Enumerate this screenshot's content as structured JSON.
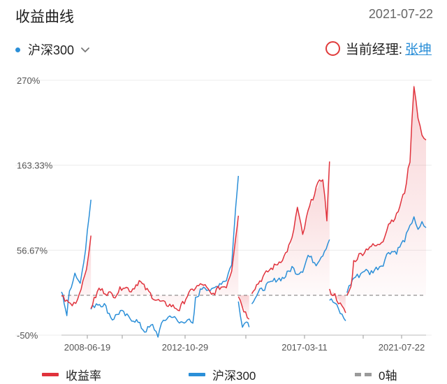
{
  "header": {
    "title": "收益曲线",
    "date": "2021-07-22"
  },
  "index_selector": {
    "label": "沪深300",
    "dot_color": "#2b8fd8"
  },
  "manager": {
    "label": "当前经理:",
    "name": "张坤"
  },
  "legend": {
    "return_label": "收益率",
    "index_label": "沪深300",
    "zero_label": "0轴"
  },
  "colors": {
    "return": "#e0323c",
    "index": "#2b8fd8",
    "zero": "#9a9a9a"
  },
  "chart_data": {
    "type": "line",
    "title": "收益曲线",
    "xlabel": "",
    "ylabel": "",
    "y_ticks": [
      "270%",
      "163.33%",
      "56.67%",
      "-50%"
    ],
    "x_ticks": [
      "2008-06-19",
      "2012-10-29",
      "2017-03-11",
      "2021-07-22"
    ],
    "ylim": [
      -50,
      270
    ],
    "grid": true,
    "zero_line": 0,
    "legend_position": "bottom",
    "series": [
      {
        "name": "收益率",
        "segments": [
          [
            [
              0,
              0
            ],
            [
              0.02,
              -8
            ],
            [
              0.04,
              -12
            ],
            [
              0.06,
              -5
            ],
            [
              0.08,
              18
            ],
            [
              0.1,
              45
            ],
            [
              0.11,
              75
            ]
          ],
          [
            [
              0.11,
              -15
            ],
            [
              0.14,
              8
            ],
            [
              0.17,
              3
            ],
            [
              0.2,
              0
            ],
            [
              0.23,
              12
            ],
            [
              0.26,
              6
            ],
            [
              0.29,
              18
            ],
            [
              0.32,
              6
            ],
            [
              0.35,
              -5
            ],
            [
              0.38,
              -10
            ],
            [
              0.41,
              -13
            ],
            [
              0.44,
              -18
            ],
            [
              0.47,
              0
            ],
            [
              0.5,
              10
            ],
            [
              0.53,
              14
            ],
            [
              0.56,
              0
            ],
            [
              0.59,
              10
            ],
            [
              0.615,
              12
            ],
            [
              0.635,
              32
            ],
            [
              0.65,
              75
            ],
            [
              0.66,
              100
            ]
          ],
          [
            [
              0.66,
              0
            ],
            [
              0.68,
              -18
            ],
            [
              0.7,
              -30
            ]
          ],
          [
            [
              0.71,
              5
            ],
            [
              0.74,
              18
            ],
            [
              0.77,
              30
            ],
            [
              0.8,
              38
            ],
            [
              0.83,
              48
            ],
            [
              0.86,
              70
            ],
            [
              0.88,
              110
            ],
            [
              0.9,
              75
            ],
            [
              0.92,
              105
            ],
            [
              0.95,
              135
            ],
            [
              0.975,
              148
            ],
            [
              0.99,
              95
            ],
            [
              1.0,
              168
            ]
          ],
          [
            [
              1.0,
              5
            ],
            [
              1.02,
              0
            ],
            [
              1.04,
              -12
            ],
            [
              1.06,
              -22
            ]
          ],
          [
            [
              1.065,
              0
            ],
            [
              1.08,
              10
            ],
            [
              1.09,
              42
            ],
            [
              1.11,
              50
            ],
            [
              1.13,
              55
            ],
            [
              1.15,
              62
            ],
            [
              1.18,
              62
            ],
            [
              1.2,
              70
            ],
            [
              1.22,
              90
            ],
            [
              1.25,
              100
            ],
            [
              1.28,
              130
            ],
            [
              1.3,
              170
            ],
            [
              1.315,
              265
            ],
            [
              1.33,
              225
            ],
            [
              1.345,
              200
            ],
            [
              1.36,
              195
            ]
          ]
        ]
      },
      {
        "name": "沪深300",
        "segments": [
          [
            [
              0,
              5
            ],
            [
              0.01,
              -8
            ],
            [
              0.02,
              -25
            ],
            [
              0.03,
              5
            ],
            [
              0.05,
              28
            ],
            [
              0.07,
              15
            ],
            [
              0.09,
              60
            ],
            [
              0.11,
              120
            ]
          ],
          [
            [
              0.11,
              -18
            ],
            [
              0.13,
              -10
            ],
            [
              0.16,
              -12
            ],
            [
              0.19,
              -30
            ],
            [
              0.22,
              -20
            ],
            [
              0.25,
              -28
            ],
            [
              0.28,
              -32
            ],
            [
              0.31,
              -45
            ],
            [
              0.34,
              -38
            ],
            [
              0.36,
              -50
            ],
            [
              0.38,
              -32
            ],
            [
              0.41,
              -25
            ],
            [
              0.44,
              -35
            ],
            [
              0.47,
              -30
            ],
            [
              0.49,
              -38
            ],
            [
              0.5,
              -5
            ],
            [
              0.53,
              12
            ],
            [
              0.56,
              5
            ],
            [
              0.59,
              15
            ],
            [
              0.615,
              20
            ],
            [
              0.635,
              40
            ],
            [
              0.65,
              110
            ],
            [
              0.66,
              150
            ]
          ],
          [
            [
              0.66,
              -5
            ],
            [
              0.675,
              -40
            ],
            [
              0.69,
              -30
            ],
            [
              0.7,
              -40
            ]
          ],
          [
            [
              0.71,
              -8
            ],
            [
              0.74,
              5
            ],
            [
              0.77,
              13
            ],
            [
              0.8,
              20
            ],
            [
              0.83,
              22
            ],
            [
              0.86,
              35
            ],
            [
              0.88,
              28
            ],
            [
              0.9,
              32
            ],
            [
              0.92,
              50
            ],
            [
              0.95,
              40
            ],
            [
              0.975,
              52
            ],
            [
              1.0,
              70
            ]
          ],
          [
            [
              1.0,
              -5
            ],
            [
              1.02,
              -10
            ],
            [
              1.04,
              -22
            ],
            [
              1.06,
              -32
            ]
          ],
          [
            [
              1.065,
              5
            ],
            [
              1.08,
              15
            ],
            [
              1.09,
              22
            ],
            [
              1.11,
              25
            ],
            [
              1.13,
              32
            ],
            [
              1.15,
              28
            ],
            [
              1.18,
              35
            ],
            [
              1.2,
              40
            ],
            [
              1.22,
              55
            ],
            [
              1.25,
              55
            ],
            [
              1.28,
              70
            ],
            [
              1.3,
              85
            ],
            [
              1.315,
              100
            ],
            [
              1.33,
              80
            ],
            [
              1.345,
              90
            ],
            [
              1.36,
              85
            ]
          ]
        ]
      }
    ]
  }
}
